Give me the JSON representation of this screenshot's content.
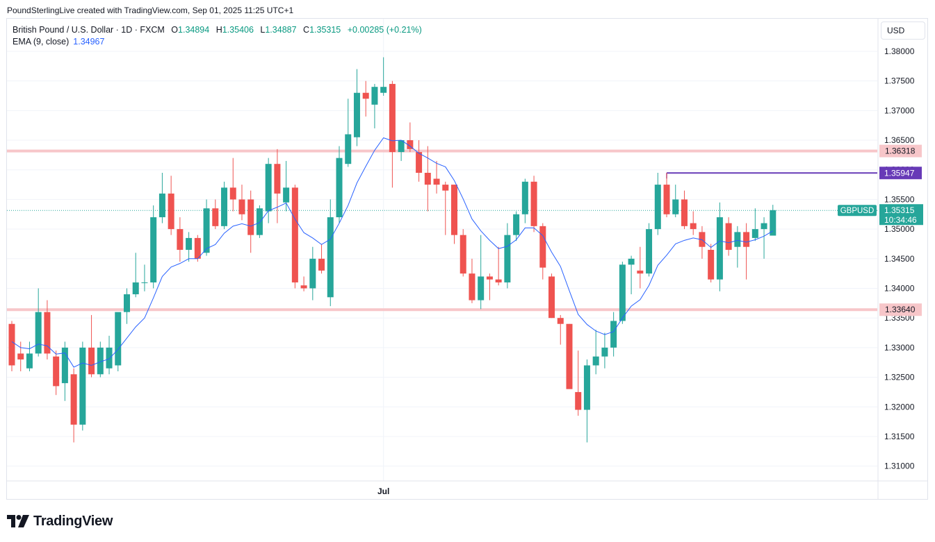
{
  "header": {
    "credit": "PoundSterlingLive created with TradingView.com, Sep 01, 2025 11:25 UTC+1"
  },
  "legend": {
    "symbol": "British Pound / U.S. Dollar · 1D · FXCM",
    "open_label": "O",
    "open": "1.34894",
    "high_label": "H",
    "high": "1.35406",
    "low_label": "L",
    "low": "1.34887",
    "close_label": "C",
    "close": "1.35315",
    "change": "+0.00285 (+0.21%)",
    "ema_label": "EMA (9, close)",
    "ema_value": "1.34967"
  },
  "currency_button": "USD",
  "footer": {
    "brand": "TradingView"
  },
  "colors": {
    "up": "#26a69a",
    "down": "#ef5350",
    "ema": "#2962ff",
    "level": "#f7c6c9",
    "marker": "#673ab7"
  },
  "chart_data": {
    "type": "candlestick",
    "symbol": "GBPUSD",
    "ylim": [
      1.3075,
      1.3855
    ],
    "y_ticks": [
      "1.38000",
      "1.37500",
      "1.37000",
      "1.36500",
      "1.36000",
      "1.35500",
      "1.35000",
      "1.34500",
      "1.34000",
      "1.33500",
      "1.33000",
      "1.32500",
      "1.32000",
      "1.31500",
      "1.31000"
    ],
    "x_tick_labels": [
      {
        "label": "Jul",
        "index": 42
      }
    ],
    "candles": [
      {
        "o": 1.334,
        "h": 1.3345,
        "l": 1.326,
        "c": 1.327
      },
      {
        "o": 1.329,
        "h": 1.331,
        "l": 1.326,
        "c": 1.328
      },
      {
        "o": 1.3265,
        "h": 1.331,
        "l": 1.326,
        "c": 1.329
      },
      {
        "o": 1.329,
        "h": 1.34,
        "l": 1.3285,
        "c": 1.336
      },
      {
        "o": 1.336,
        "h": 1.338,
        "l": 1.328,
        "c": 1.329
      },
      {
        "o": 1.3285,
        "h": 1.3295,
        "l": 1.322,
        "c": 1.3235
      },
      {
        "o": 1.324,
        "h": 1.331,
        "l": 1.321,
        "c": 1.33
      },
      {
        "o": 1.3255,
        "h": 1.3265,
        "l": 1.314,
        "c": 1.317
      },
      {
        "o": 1.317,
        "h": 1.331,
        "l": 1.316,
        "c": 1.33
      },
      {
        "o": 1.33,
        "h": 1.3355,
        "l": 1.325,
        "c": 1.3255
      },
      {
        "o": 1.3255,
        "h": 1.331,
        "l": 1.325,
        "c": 1.33
      },
      {
        "o": 1.3265,
        "h": 1.332,
        "l": 1.3255,
        "c": 1.33
      },
      {
        "o": 1.327,
        "h": 1.3355,
        "l": 1.326,
        "c": 1.336
      },
      {
        "o": 1.336,
        "h": 1.34,
        "l": 1.334,
        "c": 1.339
      },
      {
        "o": 1.339,
        "h": 1.346,
        "l": 1.3385,
        "c": 1.341
      },
      {
        "o": 1.341,
        "h": 1.344,
        "l": 1.3395,
        "c": 1.341
      },
      {
        "o": 1.341,
        "h": 1.354,
        "l": 1.34,
        "c": 1.352
      },
      {
        "o": 1.352,
        "h": 1.3595,
        "l": 1.351,
        "c": 1.356
      },
      {
        "o": 1.356,
        "h": 1.359,
        "l": 1.349,
        "c": 1.35
      },
      {
        "o": 1.35,
        "h": 1.352,
        "l": 1.3445,
        "c": 1.3465
      },
      {
        "o": 1.3465,
        "h": 1.3495,
        "l": 1.3445,
        "c": 1.3485
      },
      {
        "o": 1.3485,
        "h": 1.349,
        "l": 1.3445,
        "c": 1.345
      },
      {
        "o": 1.346,
        "h": 1.355,
        "l": 1.3455,
        "c": 1.3535
      },
      {
        "o": 1.3535,
        "h": 1.355,
        "l": 1.35,
        "c": 1.3505
      },
      {
        "o": 1.3505,
        "h": 1.358,
        "l": 1.35,
        "c": 1.357
      },
      {
        "o": 1.357,
        "h": 1.362,
        "l": 1.353,
        "c": 1.355
      },
      {
        "o": 1.355,
        "h": 1.3575,
        "l": 1.3515,
        "c": 1.3525
      },
      {
        "o": 1.355,
        "h": 1.3565,
        "l": 1.346,
        "c": 1.349
      },
      {
        "o": 1.349,
        "h": 1.354,
        "l": 1.3485,
        "c": 1.3535
      },
      {
        "o": 1.353,
        "h": 1.362,
        "l": 1.351,
        "c": 1.361
      },
      {
        "o": 1.361,
        "h": 1.3635,
        "l": 1.351,
        "c": 1.356
      },
      {
        "o": 1.3545,
        "h": 1.3615,
        "l": 1.353,
        "c": 1.357
      },
      {
        "o": 1.357,
        "h": 1.3575,
        "l": 1.34,
        "c": 1.341
      },
      {
        "o": 1.3405,
        "h": 1.342,
        "l": 1.3395,
        "c": 1.34
      },
      {
        "o": 1.34,
        "h": 1.347,
        "l": 1.338,
        "c": 1.345
      },
      {
        "o": 1.345,
        "h": 1.3475,
        "l": 1.3425,
        "c": 1.343
      },
      {
        "o": 1.3385,
        "h": 1.355,
        "l": 1.337,
        "c": 1.352
      },
      {
        "o": 1.352,
        "h": 1.364,
        "l": 1.351,
        "c": 1.362
      },
      {
        "o": 1.361,
        "h": 1.372,
        "l": 1.3605,
        "c": 1.366
      },
      {
        "o": 1.3655,
        "h": 1.377,
        "l": 1.364,
        "c": 1.373
      },
      {
        "o": 1.373,
        "h": 1.375,
        "l": 1.369,
        "c": 1.372
      },
      {
        "o": 1.371,
        "h": 1.3745,
        "l": 1.367,
        "c": 1.374
      },
      {
        "o": 1.373,
        "h": 1.379,
        "l": 1.3725,
        "c": 1.374
      },
      {
        "o": 1.3745,
        "h": 1.375,
        "l": 1.357,
        "c": 1.363
      },
      {
        "o": 1.363,
        "h": 1.3645,
        "l": 1.3615,
        "c": 1.365
      },
      {
        "o": 1.365,
        "h": 1.368,
        "l": 1.363,
        "c": 1.3635
      },
      {
        "o": 1.363,
        "h": 1.365,
        "l": 1.358,
        "c": 1.3595
      },
      {
        "o": 1.3595,
        "h": 1.364,
        "l": 1.353,
        "c": 1.3575
      },
      {
        "o": 1.3585,
        "h": 1.3615,
        "l": 1.356,
        "c": 1.3575
      },
      {
        "o": 1.3575,
        "h": 1.358,
        "l": 1.349,
        "c": 1.3565
      },
      {
        "o": 1.3575,
        "h": 1.3575,
        "l": 1.3475,
        "c": 1.349
      },
      {
        "o": 1.349,
        "h": 1.35,
        "l": 1.342,
        "c": 1.3425
      },
      {
        "o": 1.3425,
        "h": 1.345,
        "l": 1.3375,
        "c": 1.338
      },
      {
        "o": 1.338,
        "h": 1.349,
        "l": 1.3365,
        "c": 1.342
      },
      {
        "o": 1.342,
        "h": 1.3425,
        "l": 1.338,
        "c": 1.3415
      },
      {
        "o": 1.3415,
        "h": 1.347,
        "l": 1.3405,
        "c": 1.341
      },
      {
        "o": 1.341,
        "h": 1.351,
        "l": 1.34,
        "c": 1.349
      },
      {
        "o": 1.349,
        "h": 1.353,
        "l": 1.348,
        "c": 1.3525
      },
      {
        "o": 1.3525,
        "h": 1.3585,
        "l": 1.351,
        "c": 1.358
      },
      {
        "o": 1.358,
        "h": 1.359,
        "l": 1.3495,
        "c": 1.3505
      },
      {
        "o": 1.3505,
        "h": 1.351,
        "l": 1.3415,
        "c": 1.3435
      },
      {
        "o": 1.342,
        "h": 1.3425,
        "l": 1.335,
        "c": 1.335
      },
      {
        "o": 1.335,
        "h": 1.3355,
        "l": 1.3305,
        "c": 1.334
      },
      {
        "o": 1.334,
        "h": 1.334,
        "l": 1.3235,
        "c": 1.323
      },
      {
        "o": 1.3225,
        "h": 1.3295,
        "l": 1.3185,
        "c": 1.3195
      },
      {
        "o": 1.3195,
        "h": 1.328,
        "l": 1.314,
        "c": 1.327
      },
      {
        "o": 1.327,
        "h": 1.333,
        "l": 1.3255,
        "c": 1.3285
      },
      {
        "o": 1.3285,
        "h": 1.3325,
        "l": 1.3265,
        "c": 1.33
      },
      {
        "o": 1.33,
        "h": 1.336,
        "l": 1.3285,
        "c": 1.3345
      },
      {
        "o": 1.3345,
        "h": 1.3445,
        "l": 1.334,
        "c": 1.344
      },
      {
        "o": 1.344,
        "h": 1.3455,
        "l": 1.339,
        "c": 1.345
      },
      {
        "o": 1.343,
        "h": 1.347,
        "l": 1.34,
        "c": 1.3425
      },
      {
        "o": 1.3425,
        "h": 1.351,
        "l": 1.342,
        "c": 1.35
      },
      {
        "o": 1.35,
        "h": 1.3595,
        "l": 1.349,
        "c": 1.3575
      },
      {
        "o": 1.3575,
        "h": 1.3595,
        "l": 1.352,
        "c": 1.3525
      },
      {
        "o": 1.3525,
        "h": 1.3575,
        "l": 1.352,
        "c": 1.355
      },
      {
        "o": 1.355,
        "h": 1.3565,
        "l": 1.35,
        "c": 1.3505
      },
      {
        "o": 1.351,
        "h": 1.353,
        "l": 1.349,
        "c": 1.35
      },
      {
        "o": 1.3495,
        "h": 1.3505,
        "l": 1.345,
        "c": 1.347
      },
      {
        "o": 1.3465,
        "h": 1.3475,
        "l": 1.341,
        "c": 1.3415
      },
      {
        "o": 1.3415,
        "h": 1.3545,
        "l": 1.3395,
        "c": 1.352
      },
      {
        "o": 1.351,
        "h": 1.352,
        "l": 1.3455,
        "c": 1.3465
      },
      {
        "o": 1.347,
        "h": 1.3505,
        "l": 1.3435,
        "c": 1.3495
      },
      {
        "o": 1.3495,
        "h": 1.351,
        "l": 1.3415,
        "c": 1.347
      },
      {
        "o": 1.3485,
        "h": 1.3535,
        "l": 1.348,
        "c": 1.35
      },
      {
        "o": 1.35,
        "h": 1.352,
        "l": 1.345,
        "c": 1.351
      },
      {
        "o": 1.3489,
        "h": 1.3541,
        "l": 1.3489,
        "c": 1.3532
      }
    ],
    "ema": [
      1.331,
      1.33,
      1.3298,
      1.3306,
      1.3303,
      1.3289,
      1.3291,
      1.3267,
      1.3274,
      1.327,
      1.3276,
      1.3281,
      1.3297,
      1.3316,
      1.3335,
      1.335,
      1.3384,
      1.342,
      1.3436,
      1.3442,
      1.345,
      1.345,
      1.3467,
      1.3474,
      1.3493,
      1.3505,
      1.3509,
      1.3505,
      1.3511,
      1.3531,
      1.3537,
      1.3544,
      1.3517,
      1.3494,
      1.3485,
      1.3474,
      1.3483,
      1.351,
      1.354,
      1.3578,
      1.3606,
      1.3633,
      1.3654,
      1.3649,
      1.365,
      1.364,
      1.3628,
      1.362,
      1.3611,
      1.3605,
      1.3582,
      1.3551,
      1.3517,
      1.3497,
      1.3481,
      1.3467,
      1.3471,
      1.3482,
      1.3502,
      1.3502,
      1.3489,
      1.3461,
      1.3437,
      1.3396,
      1.3356,
      1.3339,
      1.3328,
      1.3322,
      1.3327,
      1.335,
      1.337,
      1.3381,
      1.3405,
      1.3439,
      1.3456,
      1.3475,
      1.3481,
      1.3485,
      1.3482,
      1.3469,
      1.348,
      1.3477,
      1.3481,
      1.3478,
      1.3482,
      1.3488,
      1.3497
    ],
    "price_levels": [
      {
        "label": "1.36318",
        "value": 1.36318,
        "type": "support-resistance"
      },
      {
        "label": "1.33640",
        "value": 1.3364,
        "type": "support-resistance"
      }
    ],
    "marker_line": {
      "label": "1.35947",
      "value": 1.35947,
      "from_index": 74
    },
    "last_price": {
      "symbol": "GBPUSD",
      "label": "1.35315",
      "value": 1.35315,
      "countdown": "10:34:46"
    }
  }
}
